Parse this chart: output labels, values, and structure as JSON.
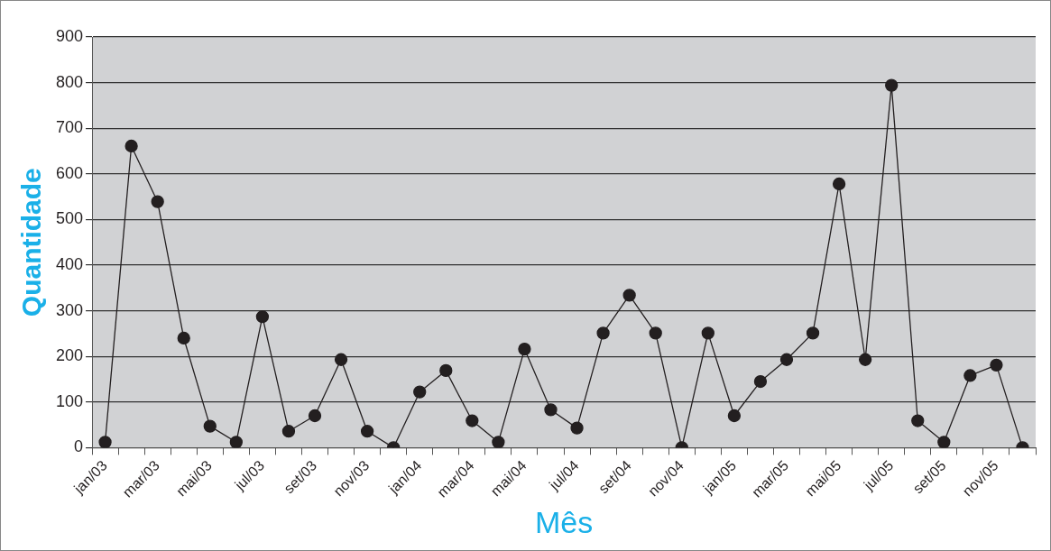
{
  "chart_data": {
    "type": "line",
    "xlabel": "Mês",
    "ylabel": "Quantidade",
    "categories": [
      "jan/03",
      null,
      "mar/03",
      null,
      "mai/03",
      null,
      "jul/03",
      null,
      "set/03",
      null,
      "nov/03",
      null,
      "jan/04",
      null,
      "mar/04",
      null,
      "mai/04",
      null,
      "jul/04",
      null,
      "set/04",
      null,
      "nov/04",
      null,
      "jan/05",
      null,
      "mar/05",
      null,
      "mai/05",
      null,
      "jul/05",
      null,
      "set/05",
      null,
      "nov/05",
      null
    ],
    "series": [
      {
        "color": "#231f20",
        "values": [
          12,
          661,
          539,
          240,
          47,
          12,
          287,
          36,
          70,
          193,
          36,
          0,
          122,
          169,
          59,
          12,
          216,
          83,
          43,
          251,
          334,
          251,
          0,
          251,
          70,
          145,
          193,
          251,
          578,
          193,
          794,
          59,
          12,
          158,
          181,
          0
        ]
      }
    ],
    "ylim": [
      0,
      900
    ],
    "yticks": [
      0,
      100,
      200,
      300,
      400,
      500,
      600,
      700,
      800,
      900
    ],
    "grid": "y",
    "legend": false,
    "marker": "circle",
    "line_style": "solid"
  }
}
